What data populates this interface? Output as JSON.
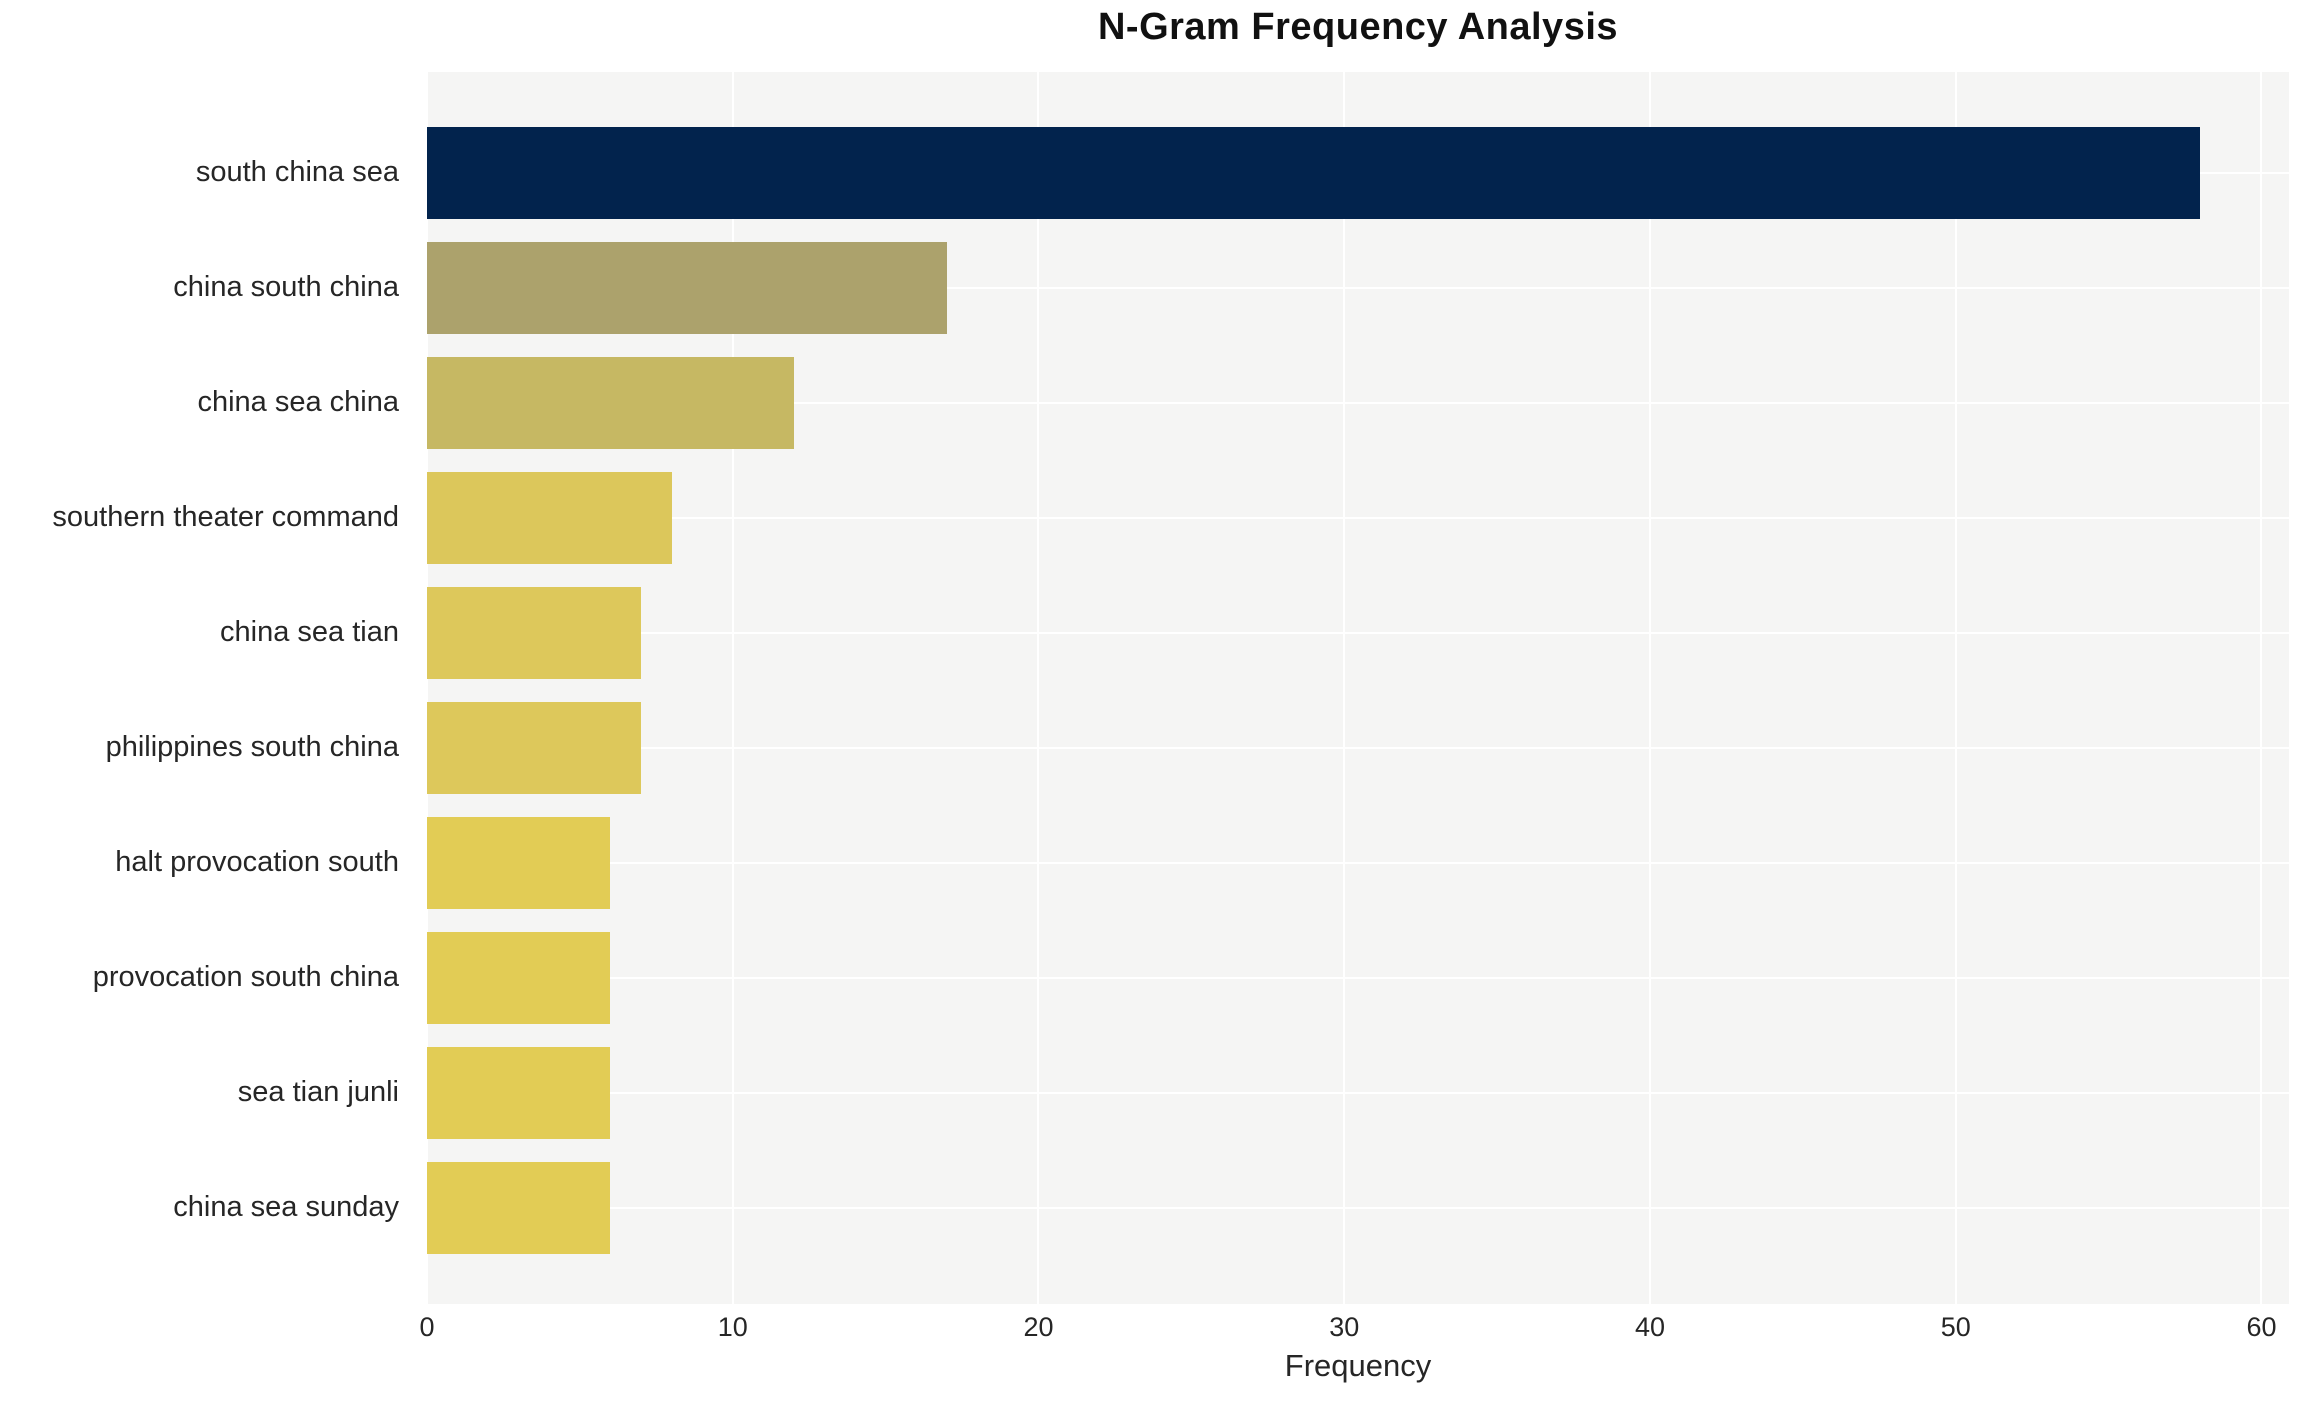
{
  "title": "N-Gram Frequency Analysis",
  "x_axis_label": "Frequency",
  "colors": {
    "page_background": "#ffffff",
    "plot_background": "#f5f5f4",
    "gridline": "#ffffff",
    "title_text": "#111111",
    "axis_text": "#262626"
  },
  "chart_data": {
    "type": "bar",
    "orientation": "horizontal",
    "title": "N-Gram Frequency Analysis",
    "xlabel": "Frequency",
    "ylabel": "",
    "categories": [
      "south china sea",
      "china south china",
      "china sea china",
      "southern theater command",
      "china sea tian",
      "philippines south china",
      "halt provocation south",
      "provocation south china",
      "sea tian junli",
      "china sea sunday"
    ],
    "values": [
      58,
      17,
      12,
      8,
      7,
      7,
      6,
      6,
      6,
      6
    ],
    "bar_colors": [
      "#02234d",
      "#aca26c",
      "#c6b863",
      "#dcc75b",
      "#ddc85b",
      "#ddc85b",
      "#e2cc55",
      "#e2cc55",
      "#e2cc55",
      "#e2cc55"
    ],
    "xticks": [
      0,
      10,
      20,
      30,
      40,
      50,
      60
    ],
    "xlim": [
      0,
      60.9
    ],
    "grid": true,
    "legend": false
  }
}
